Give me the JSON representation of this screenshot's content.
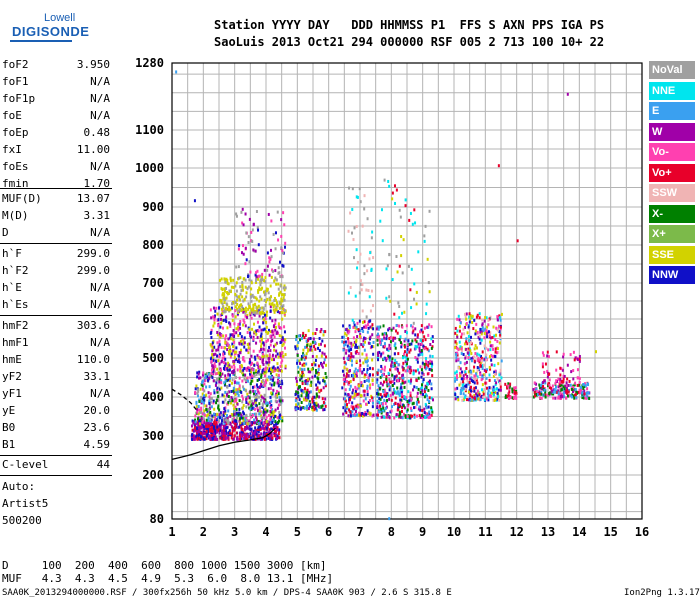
{
  "logo": {
    "line1": "Lowell",
    "line2": "DIGISONDE"
  },
  "header": {
    "labels": "Station YYYY DAY   DDD HHMMSS P1  FFS S AXN PPS IGA PS",
    "values": "SaoLuis 2013 Oct21 294 000000 RSF 005 2 713 100 10+ 22"
  },
  "params_group1": [
    {
      "name": "foF2",
      "value": "3.950"
    },
    {
      "name": "foF1",
      "value": "N/A"
    },
    {
      "name": "foF1p",
      "value": "N/A"
    },
    {
      "name": "foE",
      "value": "N/A"
    },
    {
      "name": "foEp",
      "value": "0.48"
    },
    {
      "name": "fxI",
      "value": "11.00"
    },
    {
      "name": "foEs",
      "value": "N/A"
    },
    {
      "name": "fmin",
      "value": "1.70"
    }
  ],
  "params_group2": [
    {
      "name": "MUF(D)",
      "value": "13.07"
    },
    {
      "name": "M(D)",
      "value": "3.31"
    },
    {
      "name": "D",
      "value": "N/A"
    }
  ],
  "params_group3": [
    {
      "name": "h`F",
      "value": "299.0"
    },
    {
      "name": "h`F2",
      "value": "299.0"
    },
    {
      "name": "h`E",
      "value": "N/A"
    },
    {
      "name": "h`Es",
      "value": "N/A"
    }
  ],
  "params_group4": [
    {
      "name": "hmF2",
      "value": "303.6"
    },
    {
      "name": "hmF1",
      "value": "N/A"
    },
    {
      "name": "hmE",
      "value": "110.0"
    },
    {
      "name": "yF2",
      "value": "33.1"
    },
    {
      "name": "yF1",
      "value": "N/A"
    },
    {
      "name": "yE",
      "value": "20.0"
    },
    {
      "name": "B0",
      "value": "23.6"
    },
    {
      "name": "B1",
      "value": "4.59"
    }
  ],
  "clevel": {
    "name": "C-level",
    "value": "44"
  },
  "autoscale": {
    "line1": "Auto:",
    "line2": "Artist5",
    "line3": "500200"
  },
  "legend": [
    {
      "label": "NoVal",
      "color": "#a0a0a0"
    },
    {
      "label": "NNE",
      "color": "#00e5ee"
    },
    {
      "label": "E",
      "color": "#3aa0f0"
    },
    {
      "label": "W",
      "color": "#a000a8"
    },
    {
      "label": "Vo-",
      "color": "#ff40b0"
    },
    {
      "label": "Vo+",
      "color": "#e8002a"
    },
    {
      "label": "SSW",
      "color": "#f0b4b4"
    },
    {
      "label": "X-",
      "color": "#008000"
    },
    {
      "label": "X+",
      "color": "#7cba4a"
    },
    {
      "label": "SSE",
      "color": "#d2d200"
    },
    {
      "label": "NNW",
      "color": "#1010c8"
    }
  ],
  "muf_table": {
    "d_row": "D     100  200  400  600  800 1000 1500 3000 [km]",
    "muf_row": "MUF   4.3  4.3  4.5  4.9  5.3  6.0  8.0 13.1 [MHz]"
  },
  "footer": {
    "left": "SAA0K_2013294000000.RSF / 300fx256h 50 kHz 5.0 km / DPS-4 SAA0K 903 / 2.6 S 315.8 E",
    "right": "Ion2Png 1.3.17"
  },
  "chart_data": {
    "type": "scatter",
    "title": "",
    "xlabel": "",
    "ylabel": "",
    "xlim": [
      1,
      16
    ],
    "ylim": [
      80,
      1280
    ],
    "x_ticks": [
      1,
      2,
      3,
      4,
      5,
      6,
      7,
      8,
      9,
      10,
      11,
      12,
      13,
      14,
      15,
      16
    ],
    "y_ticks": [
      80,
      200,
      300,
      400,
      500,
      600,
      700,
      800,
      900,
      1000,
      1100,
      1280
    ],
    "grid": true,
    "legend_position": "right",
    "traces": [
      {
        "name": "h`F trace",
        "style": "solid",
        "x": [
          1.0,
          1.3,
          1.6,
          2.0,
          2.5,
          3.0,
          3.5,
          3.9,
          4.1,
          4.3
        ],
        "y": [
          240,
          246,
          252,
          262,
          275,
          284,
          290,
          296,
          305,
          320
        ]
      },
      {
        "name": "hmF2 profile",
        "style": "dashed",
        "x": [
          1.0,
          1.3,
          1.6,
          1.8
        ],
        "y": [
          420,
          405,
          385,
          365
        ]
      }
    ],
    "echo_clusters": [
      {
        "x": [
          1.6,
          2.4
        ],
        "y": [
          295,
          345
        ],
        "n": 260,
        "colors": [
          "#a000a8",
          "#1010c8",
          "#e8002a"
        ]
      },
      {
        "x": [
          2.4,
          4.4
        ],
        "y": [
          295,
          340
        ],
        "n": 320,
        "colors": [
          "#a000a8",
          "#1010c8",
          "#e8002a"
        ]
      },
      {
        "x": [
          1.7,
          4.5
        ],
        "y": [
          335,
          470
        ],
        "n": 650,
        "colors": [
          "#a000a8",
          "#d2d200",
          "#3aa0f0",
          "#008000",
          "#ff40b0",
          "#1010c8",
          "#a0a0a0"
        ]
      },
      {
        "x": [
          2.2,
          4.6
        ],
        "y": [
          470,
          640
        ],
        "n": 500,
        "colors": [
          "#a000a8",
          "#1010c8",
          "#ff40b0",
          "#d2d200"
        ]
      },
      {
        "x": [
          2.5,
          4.6
        ],
        "y": [
          620,
          720
        ],
        "n": 260,
        "colors": [
          "#d2d200",
          "#d2d200",
          "#a0a0a0"
        ]
      },
      {
        "x": [
          3.0,
          4.6
        ],
        "y": [
          720,
          900
        ],
        "n": 90,
        "colors": [
          "#a0a0a0",
          "#1010c8",
          "#a000a8",
          "#ff40b0"
        ]
      },
      {
        "x": [
          4.9,
          5.9
        ],
        "y": [
          370,
          580
        ],
        "n": 260,
        "colors": [
          "#d2d200",
          "#008000",
          "#1010c8",
          "#3aa0f0",
          "#a000a8",
          "#e8002a"
        ]
      },
      {
        "x": [
          6.4,
          7.4
        ],
        "y": [
          355,
          600
        ],
        "n": 320,
        "colors": [
          "#e8002a",
          "#ff40b0",
          "#d2d200",
          "#1010c8",
          "#3aa0f0",
          "#a000a8"
        ]
      },
      {
        "x": [
          6.6,
          7.4
        ],
        "y": [
          600,
          960
        ],
        "n": 50,
        "colors": [
          "#a0a0a0",
          "#f0b4b4",
          "#00e5ee"
        ]
      },
      {
        "x": [
          7.5,
          9.3
        ],
        "y": [
          350,
          590
        ],
        "n": 560,
        "colors": [
          "#1010c8",
          "#3aa0f0",
          "#00e5ee",
          "#e8002a",
          "#ff40b0",
          "#a000a8",
          "#008000"
        ]
      },
      {
        "x": [
          7.6,
          9.2
        ],
        "y": [
          590,
          980
        ],
        "n": 60,
        "colors": [
          "#a0a0a0",
          "#00e5ee",
          "#d2d200",
          "#e8002a"
        ]
      },
      {
        "x": [
          10.0,
          11.5
        ],
        "y": [
          395,
          620
        ],
        "n": 450,
        "colors": [
          "#e8002a",
          "#ff40b0",
          "#3aa0f0",
          "#00e5ee",
          "#f0b4b4",
          "#a000a8",
          "#d2d200",
          "#1010c8"
        ]
      },
      {
        "x": [
          11.6,
          12.0
        ],
        "y": [
          400,
          440
        ],
        "n": 40,
        "colors": [
          "#ff40b0",
          "#008000",
          "#e8002a"
        ]
      },
      {
        "x": [
          12.5,
          14.3
        ],
        "y": [
          400,
          440
        ],
        "n": 200,
        "colors": [
          "#ff40b0",
          "#3aa0f0",
          "#e8002a",
          "#008000",
          "#a000a8"
        ]
      },
      {
        "x": [
          12.8,
          14.0
        ],
        "y": [
          440,
          520
        ],
        "n": 60,
        "colors": [
          "#ff40b0",
          "#e8002a",
          "#a000a8"
        ]
      }
    ],
    "isolated_points": [
      {
        "x": 1.1,
        "y": 1260,
        "color": "#3aa0f0"
      },
      {
        "x": 1.7,
        "y": 920,
        "color": "#1010c8"
      },
      {
        "x": 11.4,
        "y": 1010,
        "color": "#e8002a"
      },
      {
        "x": 13.6,
        "y": 1200,
        "color": "#a000a8"
      },
      {
        "x": 7.9,
        "y": 85,
        "color": "#3aa0f0"
      },
      {
        "x": 14.5,
        "y": 520,
        "color": "#d2d200"
      },
      {
        "x": 12.0,
        "y": 815,
        "color": "#e8002a"
      }
    ]
  }
}
